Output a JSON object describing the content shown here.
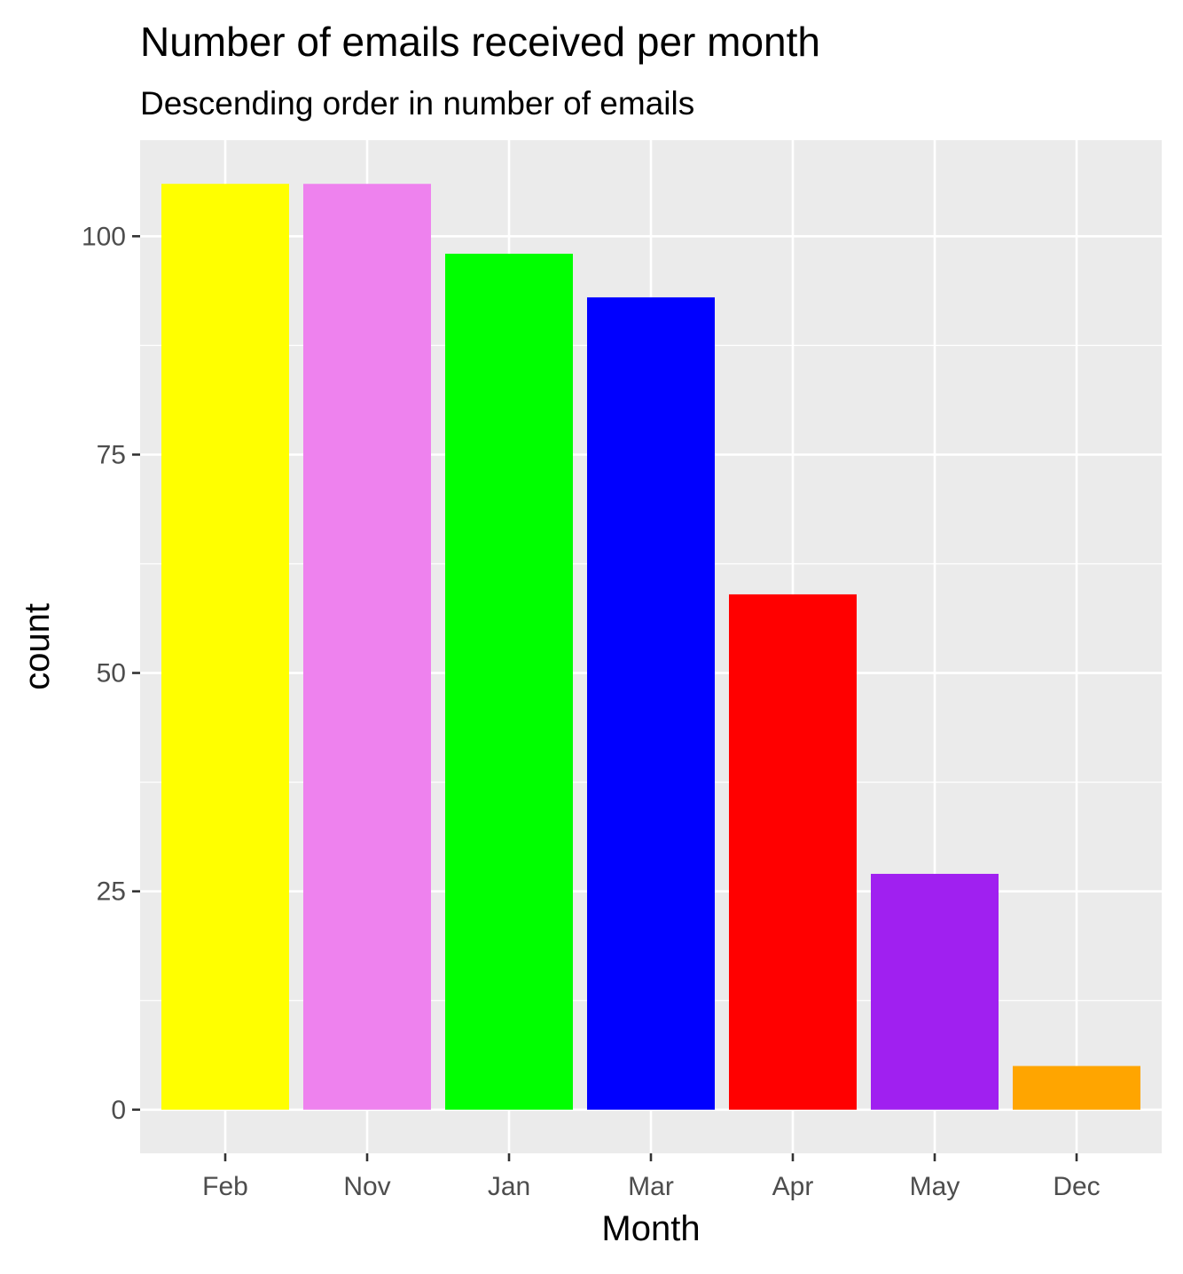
{
  "chart_data": {
    "type": "bar",
    "title": "Number of emails received per month",
    "subtitle": "Descending order in number of emails",
    "xlabel": "Month",
    "ylabel": "count",
    "categories": [
      "Feb",
      "Nov",
      "Jan",
      "Mar",
      "Apr",
      "May",
      "Dec"
    ],
    "values": [
      106,
      106,
      98,
      93,
      59,
      27,
      5
    ],
    "colors": [
      "#FFFF00",
      "#EE82EE",
      "#00FF00",
      "#0000FF",
      "#FF0000",
      "#A020F0",
      "#FFA500"
    ],
    "ylim": [
      -5,
      111
    ],
    "yticks": [
      0,
      25,
      50,
      75,
      100
    ],
    "grid": true,
    "legend": "none",
    "panel_background": "#EBEBEB",
    "grid_color": "#FFFFFF"
  }
}
